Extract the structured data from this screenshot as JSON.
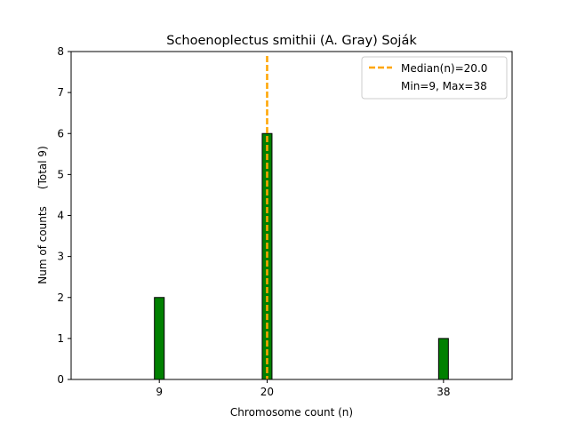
{
  "chart_data": {
    "type": "bar",
    "title": "Schoenoplectus smithii (A. Gray) Soják",
    "xlabel": "Chromosome count (n)",
    "ylabel": "Num of counts     (Total 9)",
    "x": [
      9,
      20,
      38
    ],
    "values": [
      2,
      6,
      1
    ],
    "xticks": [
      9,
      20,
      38
    ],
    "yticks": [
      0,
      1,
      2,
      3,
      4,
      5,
      6,
      7,
      8
    ],
    "xlim": [
      0,
      45
    ],
    "ylim": [
      0,
      8
    ],
    "grid": false,
    "bar_color": "#008000",
    "median": 20.0,
    "median_color": "#FFA500",
    "legend": {
      "placement": "top-right",
      "entries": [
        "Median(n)=20.0",
        "Min=9, Max=38"
      ]
    }
  }
}
